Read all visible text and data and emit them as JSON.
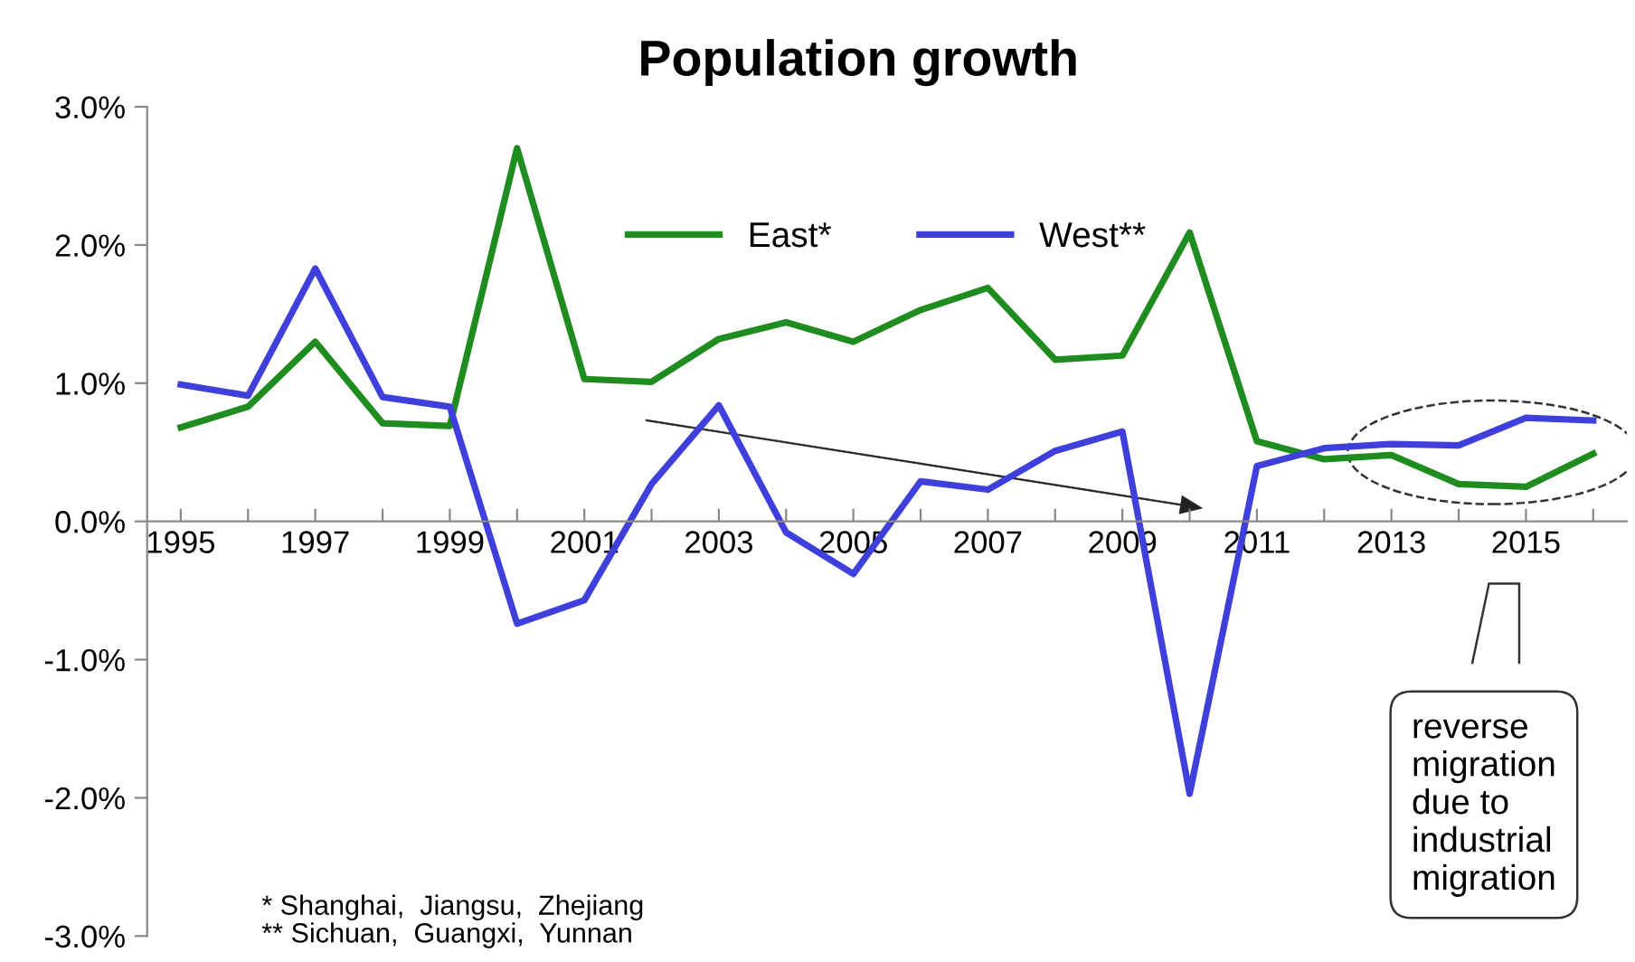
{
  "chart_data": {
    "type": "line",
    "title": "Population growth",
    "x": [
      1995,
      1996,
      1997,
      1998,
      1999,
      2000,
      2001,
      2002,
      2003,
      2004,
      2005,
      2006,
      2007,
      2008,
      2009,
      2010,
      2011,
      2012,
      2013,
      2014,
      2015,
      2016
    ],
    "series": [
      {
        "name": "East*",
        "color": "#1f8c1f",
        "values": [
          0.68,
          0.83,
          1.3,
          0.71,
          0.69,
          2.7,
          1.03,
          1.01,
          1.32,
          1.44,
          1.3,
          1.53,
          1.69,
          1.17,
          1.2,
          2.09,
          0.58,
          0.45,
          0.48,
          0.27,
          0.25,
          0.49
        ]
      },
      {
        "name": "West**",
        "color": "#3f3fdc",
        "values": [
          0.99,
          0.91,
          1.83,
          0.9,
          0.83,
          -0.74,
          -0.57,
          0.27,
          0.84,
          -0.08,
          -0.38,
          0.29,
          0.23,
          0.51,
          0.65,
          -1.97,
          0.4,
          0.53,
          0.56,
          0.55,
          0.75,
          0.73
        ]
      }
    ],
    "xlim": [
      1994.5,
      2016.5
    ],
    "xticks": [
      1995,
      {
        "value": 1996,
        "label": null
      },
      1997,
      {
        "value": 1998,
        "label": null
      },
      1999,
      {
        "value": 2000,
        "label": null
      },
      2001,
      {
        "value": 2002,
        "label": null
      },
      2003,
      {
        "value": 2004,
        "label": null
      },
      2005,
      {
        "value": 2006,
        "label": null
      },
      2007,
      {
        "value": 2008,
        "label": null
      },
      2009,
      {
        "value": 2010,
        "label": null
      },
      2011,
      {
        "value": 2012,
        "label": null
      },
      2013,
      {
        "value": 2014,
        "label": null
      },
      2015,
      {
        "value": 2016,
        "label": null
      }
    ],
    "ylim": [
      -3,
      3
    ],
    "yticks": [
      {
        "value": -3,
        "label": "-3.0%"
      },
      {
        "value": -2,
        "label": "-2.0%"
      },
      {
        "value": -1,
        "label": "-1.0%"
      },
      {
        "value": 0,
        "label": "0.0%"
      },
      {
        "value": 1,
        "label": "1.0%"
      },
      {
        "value": 2,
        "label": "2.0%"
      },
      {
        "value": 3,
        "label": "3.0%"
      }
    ],
    "grid": false,
    "legend": "top",
    "marker": "none",
    "line_style": "solid",
    "annotations": [
      "reverse\nmigration\ndue to\nindustrial\nmigration",
      "* Shanghai,  Jiangsu,  Zhejiang\n** Sichuan,  Guangxi,  Yunnan"
    ]
  }
}
